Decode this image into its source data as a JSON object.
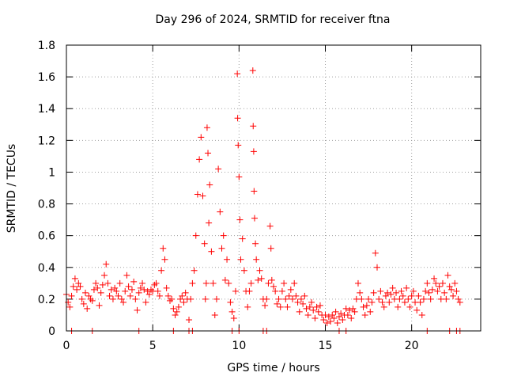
{
  "chart_data": {
    "type": "scatter",
    "title": "Day 296 of 2024, SRMTID for receiver ftna",
    "xlabel": "GPS time / hours",
    "ylabel": "SRMTID / TECUs",
    "xlim": [
      0,
      24
    ],
    "ylim": [
      0,
      1.8
    ],
    "xticks": [
      0,
      5,
      10,
      15,
      20
    ],
    "xtick_labels": [
      "0",
      "5",
      "10",
      "15",
      "20"
    ],
    "yticks": [
      0,
      0.2,
      0.4,
      0.6,
      0.8,
      1,
      1.2,
      1.4,
      1.6,
      1.8
    ],
    "ytick_labels": [
      "0",
      "0.2",
      "0.4",
      "0.6",
      "0.8",
      "1",
      "1.2",
      "1.4",
      "1.6",
      "1.8"
    ],
    "grid": true,
    "marker": "+",
    "color": "#ff0000",
    "series": [
      {
        "name": "SRMTID",
        "points": [
          [
            0.0,
            0.23
          ],
          [
            0.1,
            0.18
          ],
          [
            0.2,
            0.15
          ],
          [
            0.3,
            0.22
          ],
          [
            0.4,
            0.28
          ],
          [
            0.5,
            0.33
          ],
          [
            0.6,
            0.26
          ],
          [
            0.7,
            0.3
          ],
          [
            0.8,
            0.28
          ],
          [
            0.9,
            0.2
          ],
          [
            1.0,
            0.17
          ],
          [
            1.1,
            0.24
          ],
          [
            1.2,
            0.14
          ],
          [
            1.3,
            0.22
          ],
          [
            1.4,
            0.2
          ],
          [
            1.5,
            0.19
          ],
          [
            1.6,
            0.26
          ],
          [
            1.7,
            0.3
          ],
          [
            1.8,
            0.27
          ],
          [
            1.9,
            0.16
          ],
          [
            2.0,
            0.24
          ],
          [
            2.1,
            0.29
          ],
          [
            2.2,
            0.35
          ],
          [
            2.3,
            0.42
          ],
          [
            2.4,
            0.3
          ],
          [
            2.5,
            0.22
          ],
          [
            2.6,
            0.26
          ],
          [
            2.7,
            0.2
          ],
          [
            2.8,
            0.27
          ],
          [
            2.9,
            0.25
          ],
          [
            3.0,
            0.22
          ],
          [
            3.1,
            0.3
          ],
          [
            3.2,
            0.2
          ],
          [
            3.3,
            0.18
          ],
          [
            3.4,
            0.25
          ],
          [
            3.5,
            0.35
          ],
          [
            3.6,
            0.28
          ],
          [
            3.7,
            0.22
          ],
          [
            3.8,
            0.26
          ],
          [
            3.9,
            0.31
          ],
          [
            4.0,
            0.2
          ],
          [
            4.1,
            0.13
          ],
          [
            4.2,
            0.24
          ],
          [
            4.3,
            0.27
          ],
          [
            4.4,
            0.3
          ],
          [
            4.5,
            0.26
          ],
          [
            4.6,
            0.18
          ],
          [
            4.7,
            0.25
          ],
          [
            4.8,
            0.23
          ],
          [
            4.9,
            0.26
          ],
          [
            5.0,
            0.25
          ],
          [
            5.1,
            0.29
          ],
          [
            5.2,
            0.3
          ],
          [
            5.3,
            0.25
          ],
          [
            5.4,
            0.22
          ],
          [
            5.5,
            0.38
          ],
          [
            5.6,
            0.52
          ],
          [
            5.7,
            0.45
          ],
          [
            5.8,
            0.27
          ],
          [
            5.9,
            0.22
          ],
          [
            6.0,
            0.19
          ],
          [
            6.1,
            0.2
          ],
          [
            6.2,
            0.14
          ],
          [
            6.3,
            0.1
          ],
          [
            6.4,
            0.12
          ],
          [
            6.5,
            0.15
          ],
          [
            6.6,
            0.2
          ],
          [
            6.7,
            0.22
          ],
          [
            6.8,
            0.18
          ],
          [
            6.9,
            0.24
          ],
          [
            7.0,
            0.2
          ],
          [
            7.1,
            0.07
          ],
          [
            7.2,
            0.2
          ],
          [
            7.3,
            0.3
          ],
          [
            7.4,
            0.38
          ],
          [
            7.5,
            0.6
          ],
          [
            7.6,
            0.86
          ],
          [
            7.7,
            1.08
          ],
          [
            7.8,
            1.22
          ],
          [
            7.9,
            0.85
          ],
          [
            8.0,
            0.55
          ],
          [
            8.05,
            0.2
          ],
          [
            8.1,
            0.3
          ],
          [
            8.15,
            1.28
          ],
          [
            8.2,
            1.12
          ],
          [
            8.25,
            0.68
          ],
          [
            8.3,
            0.92
          ],
          [
            8.4,
            0.5
          ],
          [
            8.5,
            0.3
          ],
          [
            8.6,
            0.1
          ],
          [
            8.7,
            0.2
          ],
          [
            8.8,
            1.02
          ],
          [
            8.9,
            0.75
          ],
          [
            9.0,
            0.52
          ],
          [
            9.1,
            0.6
          ],
          [
            9.2,
            0.32
          ],
          [
            9.3,
            0.45
          ],
          [
            9.4,
            0.3
          ],
          [
            9.5,
            0.18
          ],
          [
            9.6,
            0.12
          ],
          [
            9.7,
            0.08
          ],
          [
            9.8,
            0.25
          ],
          [
            9.9,
            1.62
          ],
          [
            9.92,
            1.34
          ],
          [
            9.95,
            1.17
          ],
          [
            10.0,
            0.97
          ],
          [
            10.05,
            0.7
          ],
          [
            10.1,
            0.45
          ],
          [
            10.2,
            0.58
          ],
          [
            10.3,
            0.38
          ],
          [
            10.4,
            0.25
          ],
          [
            10.5,
            0.15
          ],
          [
            10.6,
            0.25
          ],
          [
            10.7,
            0.3
          ],
          [
            10.8,
            1.64
          ],
          [
            10.82,
            1.29
          ],
          [
            10.85,
            1.13
          ],
          [
            10.87,
            0.88
          ],
          [
            10.9,
            0.71
          ],
          [
            10.95,
            0.55
          ],
          [
            11.0,
            0.45
          ],
          [
            11.1,
            0.32
          ],
          [
            11.2,
            0.38
          ],
          [
            11.3,
            0.33
          ],
          [
            11.4,
            0.2
          ],
          [
            11.5,
            0.16
          ],
          [
            11.6,
            0.2
          ],
          [
            11.7,
            0.3
          ],
          [
            11.8,
            0.66
          ],
          [
            11.85,
            0.52
          ],
          [
            11.9,
            0.32
          ],
          [
            12.0,
            0.28
          ],
          [
            12.1,
            0.25
          ],
          [
            12.2,
            0.17
          ],
          [
            12.3,
            0.2
          ],
          [
            12.4,
            0.15
          ],
          [
            12.5,
            0.25
          ],
          [
            12.6,
            0.3
          ],
          [
            12.7,
            0.2
          ],
          [
            12.8,
            0.15
          ],
          [
            12.9,
            0.22
          ],
          [
            13.0,
            0.26
          ],
          [
            13.1,
            0.2
          ],
          [
            13.2,
            0.3
          ],
          [
            13.3,
            0.22
          ],
          [
            13.4,
            0.18
          ],
          [
            13.5,
            0.12
          ],
          [
            13.6,
            0.2
          ],
          [
            13.7,
            0.17
          ],
          [
            13.8,
            0.22
          ],
          [
            13.9,
            0.14
          ],
          [
            14.0,
            0.1
          ],
          [
            14.1,
            0.15
          ],
          [
            14.2,
            0.18
          ],
          [
            14.3,
            0.13
          ],
          [
            14.4,
            0.08
          ],
          [
            14.5,
            0.15
          ],
          [
            14.6,
            0.12
          ],
          [
            14.7,
            0.16
          ],
          [
            14.8,
            0.1
          ],
          [
            14.9,
            0.07
          ],
          [
            15.0,
            0.1
          ],
          [
            15.1,
            0.05
          ],
          [
            15.2,
            0.09
          ],
          [
            15.3,
            0.06
          ],
          [
            15.4,
            0.1
          ],
          [
            15.5,
            0.08
          ],
          [
            15.6,
            0.12
          ],
          [
            15.7,
            0.05
          ],
          [
            15.8,
            0.09
          ],
          [
            15.9,
            0.11
          ],
          [
            16.0,
            0.07
          ],
          [
            16.1,
            0.1
          ],
          [
            16.2,
            0.14
          ],
          [
            16.3,
            0.1
          ],
          [
            16.4,
            0.13
          ],
          [
            16.5,
            0.08
          ],
          [
            16.6,
            0.14
          ],
          [
            16.7,
            0.12
          ],
          [
            16.8,
            0.2
          ],
          [
            16.9,
            0.3
          ],
          [
            17.0,
            0.24
          ],
          [
            17.1,
            0.2
          ],
          [
            17.2,
            0.15
          ],
          [
            17.3,
            0.1
          ],
          [
            17.4,
            0.16
          ],
          [
            17.5,
            0.2
          ],
          [
            17.6,
            0.12
          ],
          [
            17.7,
            0.18
          ],
          [
            17.8,
            0.24
          ],
          [
            17.9,
            0.49
          ],
          [
            18.0,
            0.4
          ],
          [
            18.1,
            0.2
          ],
          [
            18.2,
            0.25
          ],
          [
            18.3,
            0.18
          ],
          [
            18.4,
            0.15
          ],
          [
            18.5,
            0.22
          ],
          [
            18.6,
            0.24
          ],
          [
            18.7,
            0.18
          ],
          [
            18.8,
            0.23
          ],
          [
            18.9,
            0.27
          ],
          [
            19.0,
            0.2
          ],
          [
            19.1,
            0.24
          ],
          [
            19.2,
            0.15
          ],
          [
            19.3,
            0.2
          ],
          [
            19.4,
            0.25
          ],
          [
            19.5,
            0.22
          ],
          [
            19.6,
            0.18
          ],
          [
            19.7,
            0.27
          ],
          [
            19.8,
            0.2
          ],
          [
            19.9,
            0.15
          ],
          [
            20.0,
            0.22
          ],
          [
            20.1,
            0.25
          ],
          [
            20.2,
            0.18
          ],
          [
            20.3,
            0.13
          ],
          [
            20.4,
            0.22
          ],
          [
            20.5,
            0.18
          ],
          [
            20.6,
            0.1
          ],
          [
            20.7,
            0.2
          ],
          [
            20.8,
            0.25
          ],
          [
            20.9,
            0.3
          ],
          [
            21.0,
            0.24
          ],
          [
            21.1,
            0.2
          ],
          [
            21.2,
            0.26
          ],
          [
            21.3,
            0.33
          ],
          [
            21.4,
            0.3
          ],
          [
            21.5,
            0.25
          ],
          [
            21.6,
            0.28
          ],
          [
            21.7,
            0.2
          ],
          [
            21.8,
            0.3
          ],
          [
            21.9,
            0.24
          ],
          [
            22.0,
            0.2
          ],
          [
            22.1,
            0.35
          ],
          [
            22.2,
            0.28
          ],
          [
            22.3,
            0.26
          ],
          [
            22.4,
            0.22
          ],
          [
            22.5,
            0.3
          ],
          [
            22.6,
            0.25
          ],
          [
            22.7,
            0.2
          ],
          [
            22.8,
            0.18
          ],
          [
            0.3,
            0.0
          ],
          [
            1.5,
            0.0
          ],
          [
            4.2,
            0.0
          ],
          [
            6.2,
            0.0
          ],
          [
            7.1,
            0.0
          ],
          [
            7.3,
            0.0
          ],
          [
            9.6,
            0.0
          ],
          [
            10.0,
            0.0
          ],
          [
            11.4,
            0.0
          ],
          [
            11.6,
            0.0
          ],
          [
            15.8,
            0.0
          ],
          [
            16.2,
            0.0
          ],
          [
            20.9,
            0.0
          ],
          [
            22.2,
            0.0
          ],
          [
            22.6,
            0.0
          ],
          [
            22.8,
            0.0
          ]
        ]
      }
    ]
  }
}
